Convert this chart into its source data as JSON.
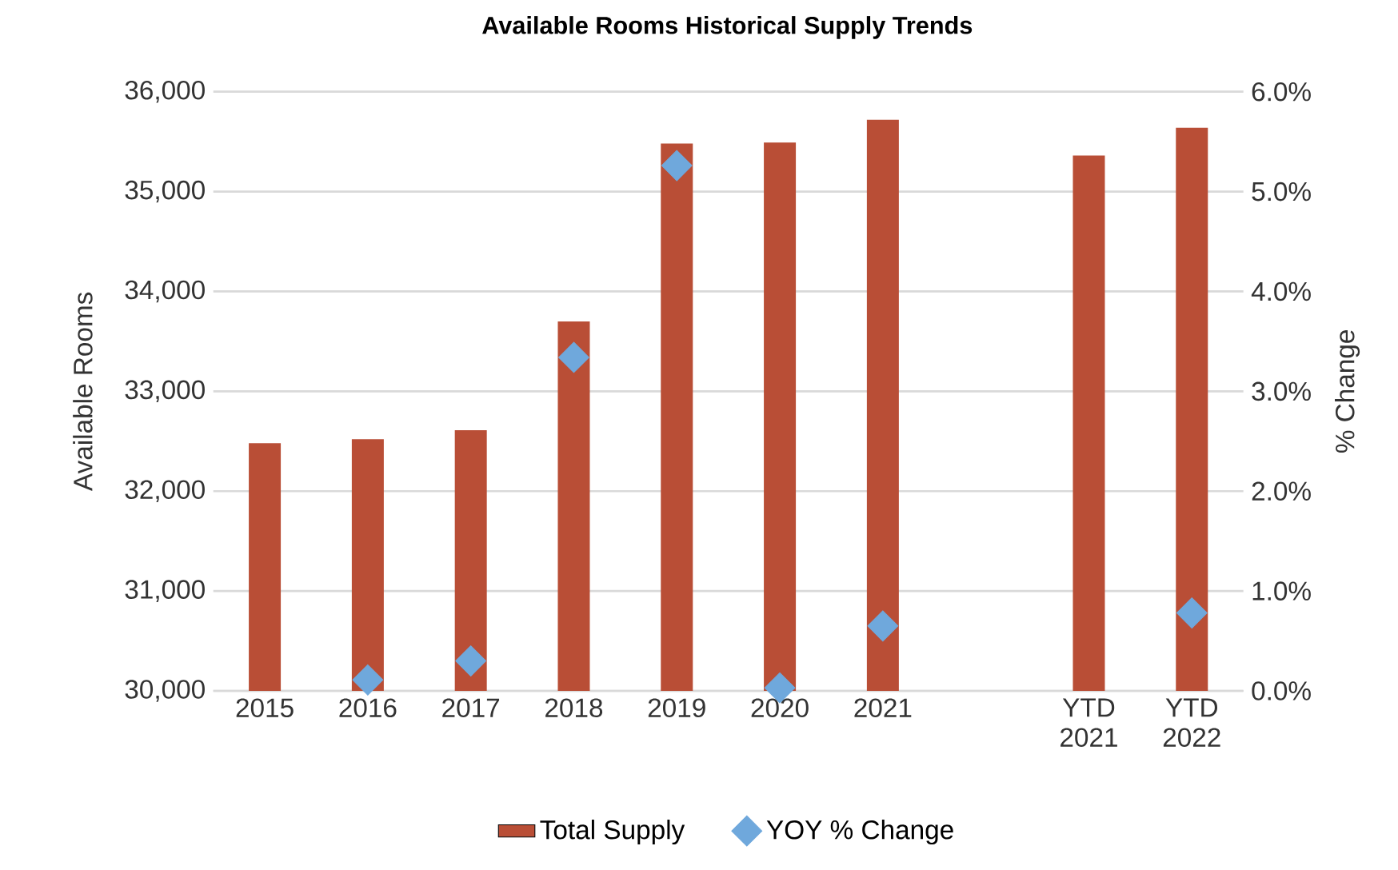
{
  "chart_data": {
    "type": "bar",
    "title": "Available Rooms Historical Supply Trends",
    "ylabel": "Available Rooms",
    "y2label": "% Change",
    "categories": [
      "2015",
      "2016",
      "2017",
      "2018",
      "2019",
      "2020",
      "2021",
      null,
      "YTD 2021",
      "YTD 2022"
    ],
    "series": [
      {
        "name": "Total Supply",
        "color": "#b94e36",
        "values": [
          32480,
          32520,
          32610,
          33700,
          35480,
          35490,
          35720,
          null,
          35360,
          35640
        ]
      },
      {
        "name": "YOY % Change",
        "type": "scatter",
        "axis": "y2",
        "marker": "diamond",
        "color": "#6fa8dc",
        "values": [
          null,
          0.11,
          0.3,
          3.34,
          5.26,
          0.03,
          0.65,
          null,
          null,
          0.78
        ]
      }
    ],
    "ylim": [
      30000,
      36000
    ],
    "yticks": [
      {
        "value": 30000,
        "label": "30,000"
      },
      {
        "value": 31000,
        "label": "31,000"
      },
      {
        "value": 32000,
        "label": "32,000"
      },
      {
        "value": 33000,
        "label": "33,000"
      },
      {
        "value": 34000,
        "label": "34,000"
      },
      {
        "value": 35000,
        "label": "35,000"
      },
      {
        "value": 36000,
        "label": "36,000"
      }
    ],
    "y2lim": [
      0,
      6
    ],
    "y2ticks": [
      {
        "value": 0,
        "label": "0.0%"
      },
      {
        "value": 1,
        "label": "1.0%"
      },
      {
        "value": 2,
        "label": "2.0%"
      },
      {
        "value": 3,
        "label": "3.0%"
      },
      {
        "value": 4,
        "label": "4.0%"
      },
      {
        "value": 5,
        "label": "5.0%"
      },
      {
        "value": 6,
        "label": "6.0%"
      }
    ],
    "grid": "y",
    "legend": "bottom"
  }
}
